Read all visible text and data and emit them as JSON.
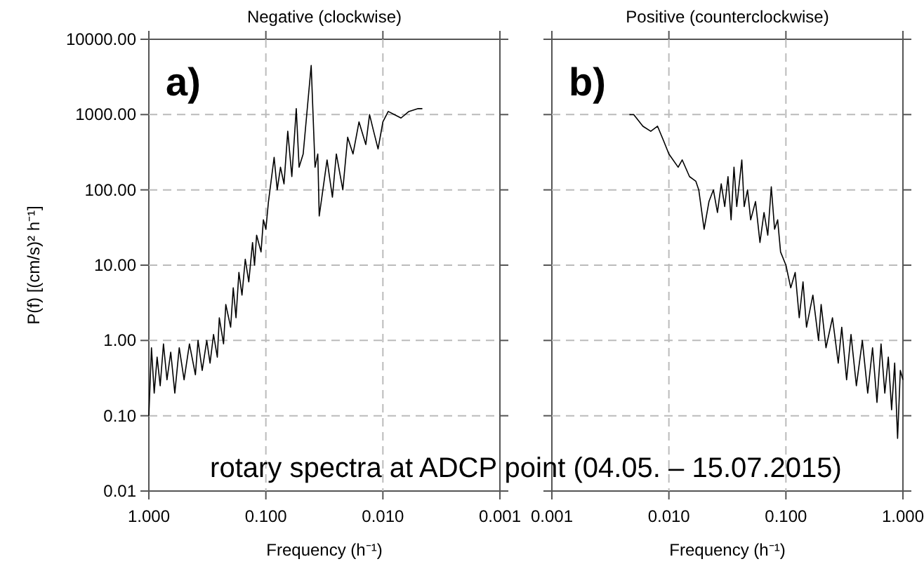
{
  "chart_data": [
    {
      "type": "line",
      "title": "Negative (clockwise)",
      "xlabel": "Frequency (h⁻¹)",
      "ylabel": "P(f) [(cm/s)² h⁻¹]",
      "log": "xy",
      "grid": true,
      "xlim": [
        1,
        0.001
      ],
      "xticks": [
        {
          "value": 1,
          "label": "1.000"
        },
        {
          "value": 0.1,
          "label": "0.100"
        },
        {
          "value": 0.01,
          "label": "0.010"
        },
        {
          "value": 0.001,
          "label": "0.001"
        }
      ],
      "ylim": [
        0.01,
        10000
      ],
      "yticks": [
        {
          "value": 0.01,
          "label": "0.01"
        },
        {
          "value": 0.1,
          "label": "0.10"
        },
        {
          "value": 1,
          "label": "1.00"
        },
        {
          "value": 10,
          "label": "10.00"
        },
        {
          "value": 100,
          "label": "100.00"
        },
        {
          "value": 1000,
          "label": "1000.00"
        },
        {
          "value": 10000,
          "label": "10000.00"
        }
      ],
      "annotations": [
        "a)",
        "rotary spectra at ADCP point (04.05. – 15.07.2015)"
      ],
      "series": [
        {
          "color": "#000000",
          "x": [
            1.0,
            0.95,
            0.9,
            0.85,
            0.8,
            0.75,
            0.7,
            0.65,
            0.6,
            0.55,
            0.5,
            0.45,
            0.4,
            0.38,
            0.35,
            0.32,
            0.3,
            0.28,
            0.26,
            0.25,
            0.23,
            0.22,
            0.2,
            0.19,
            0.18,
            0.17,
            0.16,
            0.15,
            0.14,
            0.13,
            0.125,
            0.12,
            0.11,
            0.105,
            0.1,
            0.095,
            0.085,
            0.08,
            0.075,
            0.07,
            0.065,
            0.06,
            0.055,
            0.052,
            0.048,
            0.041,
            0.038,
            0.036,
            0.035,
            0.03,
            0.027,
            0.025,
            0.022,
            0.02,
            0.018,
            0.016,
            0.014,
            0.013,
            0.012,
            0.011,
            0.01,
            0.009,
            0.008,
            0.007,
            0.006,
            0.005,
            0.0046
          ],
          "values": [
            0.1,
            0.8,
            0.2,
            0.6,
            0.25,
            0.9,
            0.3,
            0.7,
            0.2,
            0.8,
            0.3,
            0.9,
            0.35,
            1.0,
            0.4,
            1.0,
            0.5,
            1.2,
            0.6,
            2,
            0.9,
            3,
            1.5,
            5,
            2,
            8,
            4,
            12,
            6,
            20,
            10,
            25,
            15,
            40,
            30,
            70,
            270,
            100,
            200,
            120,
            600,
            150,
            1200,
            200,
            300,
            4500,
            200,
            300,
            45,
            250,
            80,
            300,
            100,
            500,
            300,
            800,
            400,
            1000,
            600,
            350,
            800,
            1100,
            1000,
            900,
            1100,
            1200,
            1200
          ]
        }
      ]
    },
    {
      "type": "line",
      "title": "Positive (counterclockwise)",
      "xlabel": "Frequency (h⁻¹)",
      "log": "xy",
      "grid": true,
      "tick_labels": "x",
      "xlim": [
        0.001,
        1
      ],
      "xticks": [
        {
          "value": 0.001,
          "label": "0.001"
        },
        {
          "value": 0.01,
          "label": "0.010"
        },
        {
          "value": 0.1,
          "label": "0.100"
        },
        {
          "value": 1,
          "label": "1.000"
        }
      ],
      "ylim": [
        0.01,
        10000
      ],
      "yticks": [
        0.01,
        0.1,
        1,
        10,
        100,
        1000,
        10000
      ],
      "annotations": [
        "b)"
      ],
      "series": [
        {
          "color": "#000000",
          "x": [
            0.0046,
            0.005,
            0.006,
            0.007,
            0.008,
            0.009,
            0.01,
            0.012,
            0.013,
            0.015,
            0.017,
            0.018,
            0.02,
            0.022,
            0.024,
            0.026,
            0.028,
            0.03,
            0.032,
            0.034,
            0.036,
            0.038,
            0.042,
            0.044,
            0.047,
            0.05,
            0.055,
            0.06,
            0.065,
            0.07,
            0.075,
            0.08,
            0.085,
            0.09,
            0.1,
            0.11,
            0.12,
            0.13,
            0.14,
            0.15,
            0.17,
            0.19,
            0.2,
            0.22,
            0.25,
            0.28,
            0.3,
            0.33,
            0.36,
            0.4,
            0.45,
            0.5,
            0.55,
            0.6,
            0.65,
            0.7,
            0.75,
            0.8,
            0.85,
            0.9,
            0.95,
            1.0
          ],
          "values": [
            1000,
            1000,
            700,
            600,
            700,
            450,
            300,
            200,
            250,
            150,
            130,
            100,
            30,
            70,
            100,
            50,
            120,
            60,
            150,
            40,
            200,
            60,
            250,
            60,
            100,
            40,
            70,
            20,
            50,
            25,
            110,
            30,
            40,
            15,
            10,
            5,
            8,
            2,
            6,
            1.5,
            4,
            1,
            3,
            0.8,
            2,
            0.5,
            1.5,
            0.3,
            1.2,
            0.25,
            1.0,
            0.2,
            0.8,
            0.15,
            0.9,
            0.2,
            0.6,
            0.12,
            0.5,
            0.05,
            0.4,
            0.3
          ]
        }
      ]
    }
  ]
}
